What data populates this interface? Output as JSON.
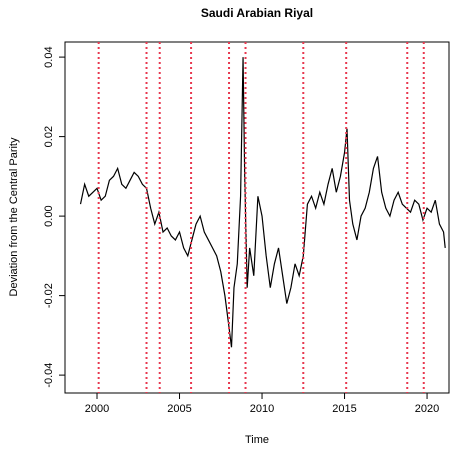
{
  "chart_data": {
    "type": "line",
    "title": "Saudi Arabian Riyal",
    "xlabel": "Time",
    "ylabel": "Deviation from the Central Parity",
    "x": [
      1999.0,
      1999.25,
      1999.5,
      1999.75,
      2000.0,
      2000.25,
      2000.5,
      2000.75,
      2001.0,
      2001.25,
      2001.5,
      2001.75,
      2002.0,
      2002.25,
      2002.5,
      2002.75,
      2003.0,
      2003.25,
      2003.5,
      2003.75,
      2004.0,
      2004.25,
      2004.5,
      2004.75,
      2005.0,
      2005.25,
      2005.5,
      2005.75,
      2006.0,
      2006.25,
      2006.5,
      2006.75,
      2007.0,
      2007.25,
      2007.5,
      2007.75,
      2008.0,
      2008.15,
      2008.3,
      2008.5,
      2008.7,
      2008.85,
      2008.95,
      2009.1,
      2009.25,
      2009.5,
      2009.75,
      2010.0,
      2010.25,
      2010.5,
      2010.75,
      2011.0,
      2011.25,
      2011.5,
      2011.75,
      2012.0,
      2012.25,
      2012.5,
      2012.75,
      2013.0,
      2013.25,
      2013.5,
      2013.75,
      2014.0,
      2014.25,
      2014.5,
      2014.75,
      2015.0,
      2015.15,
      2015.3,
      2015.5,
      2015.75,
      2016.0,
      2016.25,
      2016.5,
      2016.75,
      2017.0,
      2017.25,
      2017.5,
      2017.75,
      2018.0,
      2018.25,
      2018.5,
      2018.75,
      2019.0,
      2019.25,
      2019.5,
      2019.75,
      2020.0,
      2020.25,
      2020.5,
      2020.75,
      2021.0,
      2021.1
    ],
    "series": [
      {
        "color": "#000000",
        "values": [
          0.003,
          0.008,
          0.005,
          0.006,
          0.007,
          0.004,
          0.005,
          0.009,
          0.01,
          0.012,
          0.008,
          0.007,
          0.009,
          0.011,
          0.01,
          0.008,
          0.007,
          0.002,
          -0.002,
          0.001,
          -0.004,
          -0.003,
          -0.005,
          -0.006,
          -0.004,
          -0.008,
          -0.01,
          -0.006,
          -0.002,
          0.0,
          -0.004,
          -0.006,
          -0.008,
          -0.01,
          -0.014,
          -0.02,
          -0.028,
          -0.033,
          -0.018,
          -0.012,
          0.005,
          0.04,
          0.01,
          -0.018,
          -0.008,
          -0.015,
          0.005,
          0.0,
          -0.01,
          -0.018,
          -0.012,
          -0.008,
          -0.015,
          -0.022,
          -0.018,
          -0.012,
          -0.015,
          -0.01,
          0.003,
          0.005,
          0.002,
          0.006,
          0.003,
          0.008,
          0.012,
          0.006,
          0.01,
          0.016,
          0.022,
          0.004,
          -0.002,
          -0.006,
          0.0,
          0.002,
          0.006,
          0.012,
          0.015,
          0.006,
          0.002,
          0.0,
          0.004,
          0.006,
          0.003,
          0.002,
          0.001,
          0.004,
          0.003,
          -0.001,
          0.002,
          0.001,
          0.004,
          -0.002,
          -0.004,
          -0.008
        ]
      }
    ],
    "vlines": [
      2000.1,
      2003.0,
      2003.8,
      2005.7,
      2008.0,
      2009.0,
      2012.5,
      2015.1,
      2018.8,
      2019.8
    ],
    "vline_color": "#e8384f",
    "xlim": [
      1998.06,
      2021.33
    ],
    "xticks": [
      2000,
      2005,
      2010,
      2015,
      2020
    ],
    "ylim": [
      -0.0445,
      0.0438
    ],
    "yticks": [
      -0.04,
      -0.02,
      {
        "value": 0,
        "label": "0.00"
      },
      0.02,
      0.04
    ]
  }
}
